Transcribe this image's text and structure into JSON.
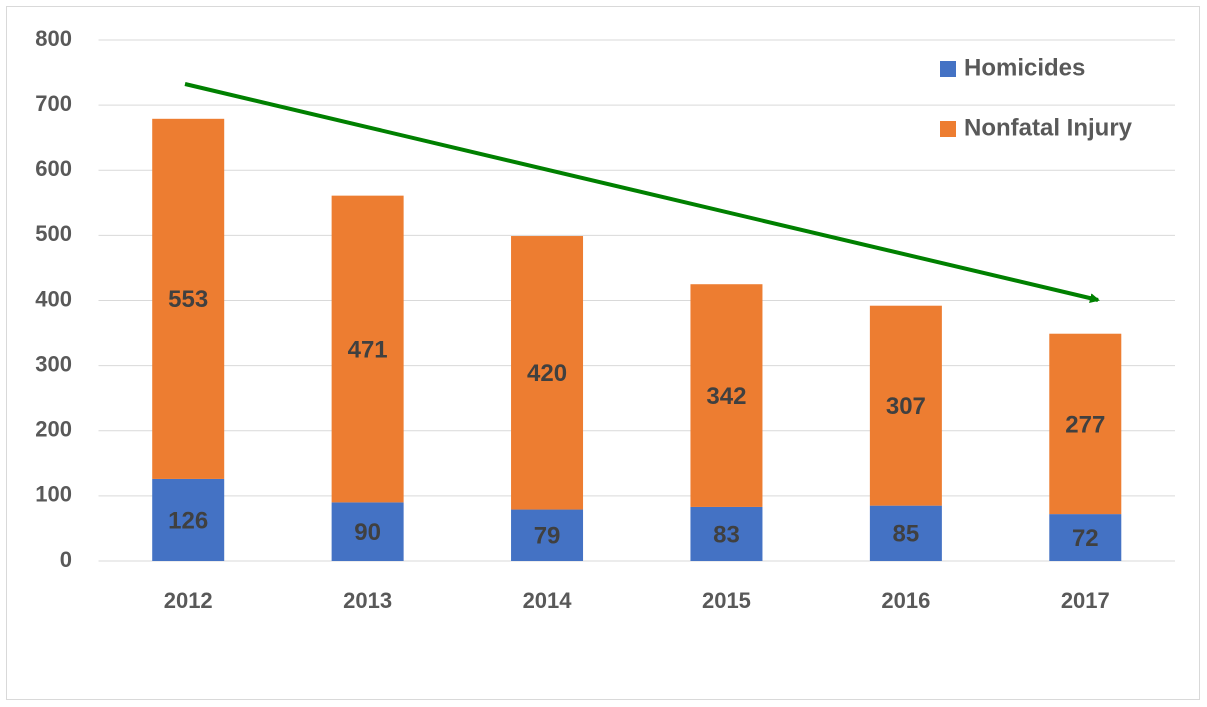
{
  "chart_data": {
    "type": "bar",
    "stacked": true,
    "categories": [
      "2012",
      "2013",
      "2014",
      "2015",
      "2016",
      "2017"
    ],
    "series": [
      {
        "name": "Homicides",
        "color": "#4472c4",
        "values": [
          126,
          90,
          79,
          83,
          85,
          72
        ]
      },
      {
        "name": "Nonfatal Injury",
        "color": "#ed7d31",
        "values": [
          553,
          471,
          420,
          342,
          307,
          277
        ]
      }
    ],
    "ylim": [
      0,
      800
    ],
    "yticks": [
      0,
      100,
      200,
      300,
      400,
      500,
      600,
      700,
      800
    ],
    "grid": true,
    "legend": "upper right",
    "data_labels": true
  }
}
